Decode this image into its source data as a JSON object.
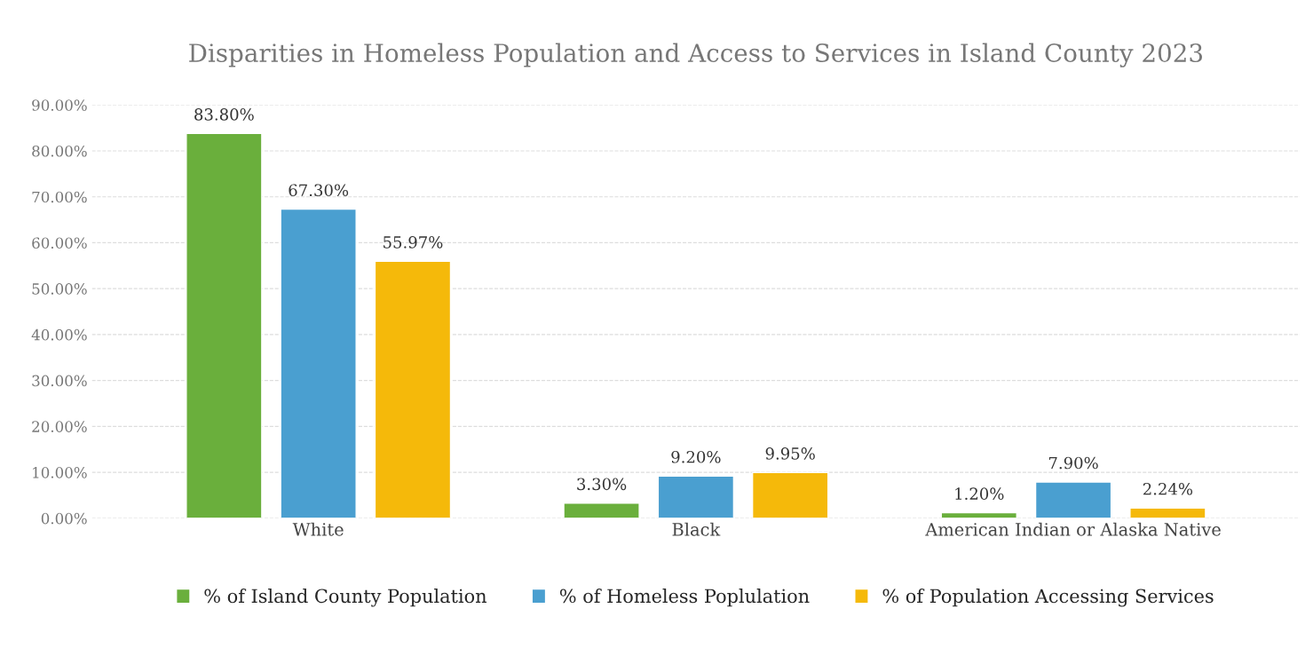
{
  "chart_data": {
    "type": "bar",
    "title": "Disparities in Homeless Population and Access to Services in Island County 2023",
    "categories": [
      "White",
      "Black",
      "American Indian or Alaska Native"
    ],
    "series": [
      {
        "name": "% of Island County Population",
        "color": "#6aaf3c",
        "values": [
          83.8,
          3.3,
          1.2
        ],
        "value_labels": [
          "83.80%",
          "3.30%",
          "1.20%"
        ]
      },
      {
        "name": "% of Homeless Poplulation",
        "color": "#4a9fd0",
        "values": [
          67.3,
          9.2,
          7.9
        ],
        "value_labels": [
          "67.30%",
          "9.20%",
          "7.90%"
        ]
      },
      {
        "name": "% of Population Accessing Services",
        "color": "#f5b90a",
        "values": [
          55.97,
          9.95,
          2.24
        ],
        "value_labels": [
          "55.97%",
          "9.95%",
          "2.24%"
        ]
      }
    ],
    "ylim": [
      0,
      90
    ],
    "yticks": [
      {
        "value": 0,
        "label": "0.00%"
      },
      {
        "value": 10,
        "label": "10.00%"
      },
      {
        "value": 20,
        "label": "20.00%"
      },
      {
        "value": 30,
        "label": "30.00%"
      },
      {
        "value": 40,
        "label": "40.00%"
      },
      {
        "value": 50,
        "label": "50.00%"
      },
      {
        "value": 60,
        "label": "60.00%"
      },
      {
        "value": 70,
        "label": "70.00%"
      },
      {
        "value": 80,
        "label": "80.00%"
      },
      {
        "value": 90,
        "label": "90.00%"
      }
    ],
    "grid": "y",
    "legend": "bottom"
  }
}
